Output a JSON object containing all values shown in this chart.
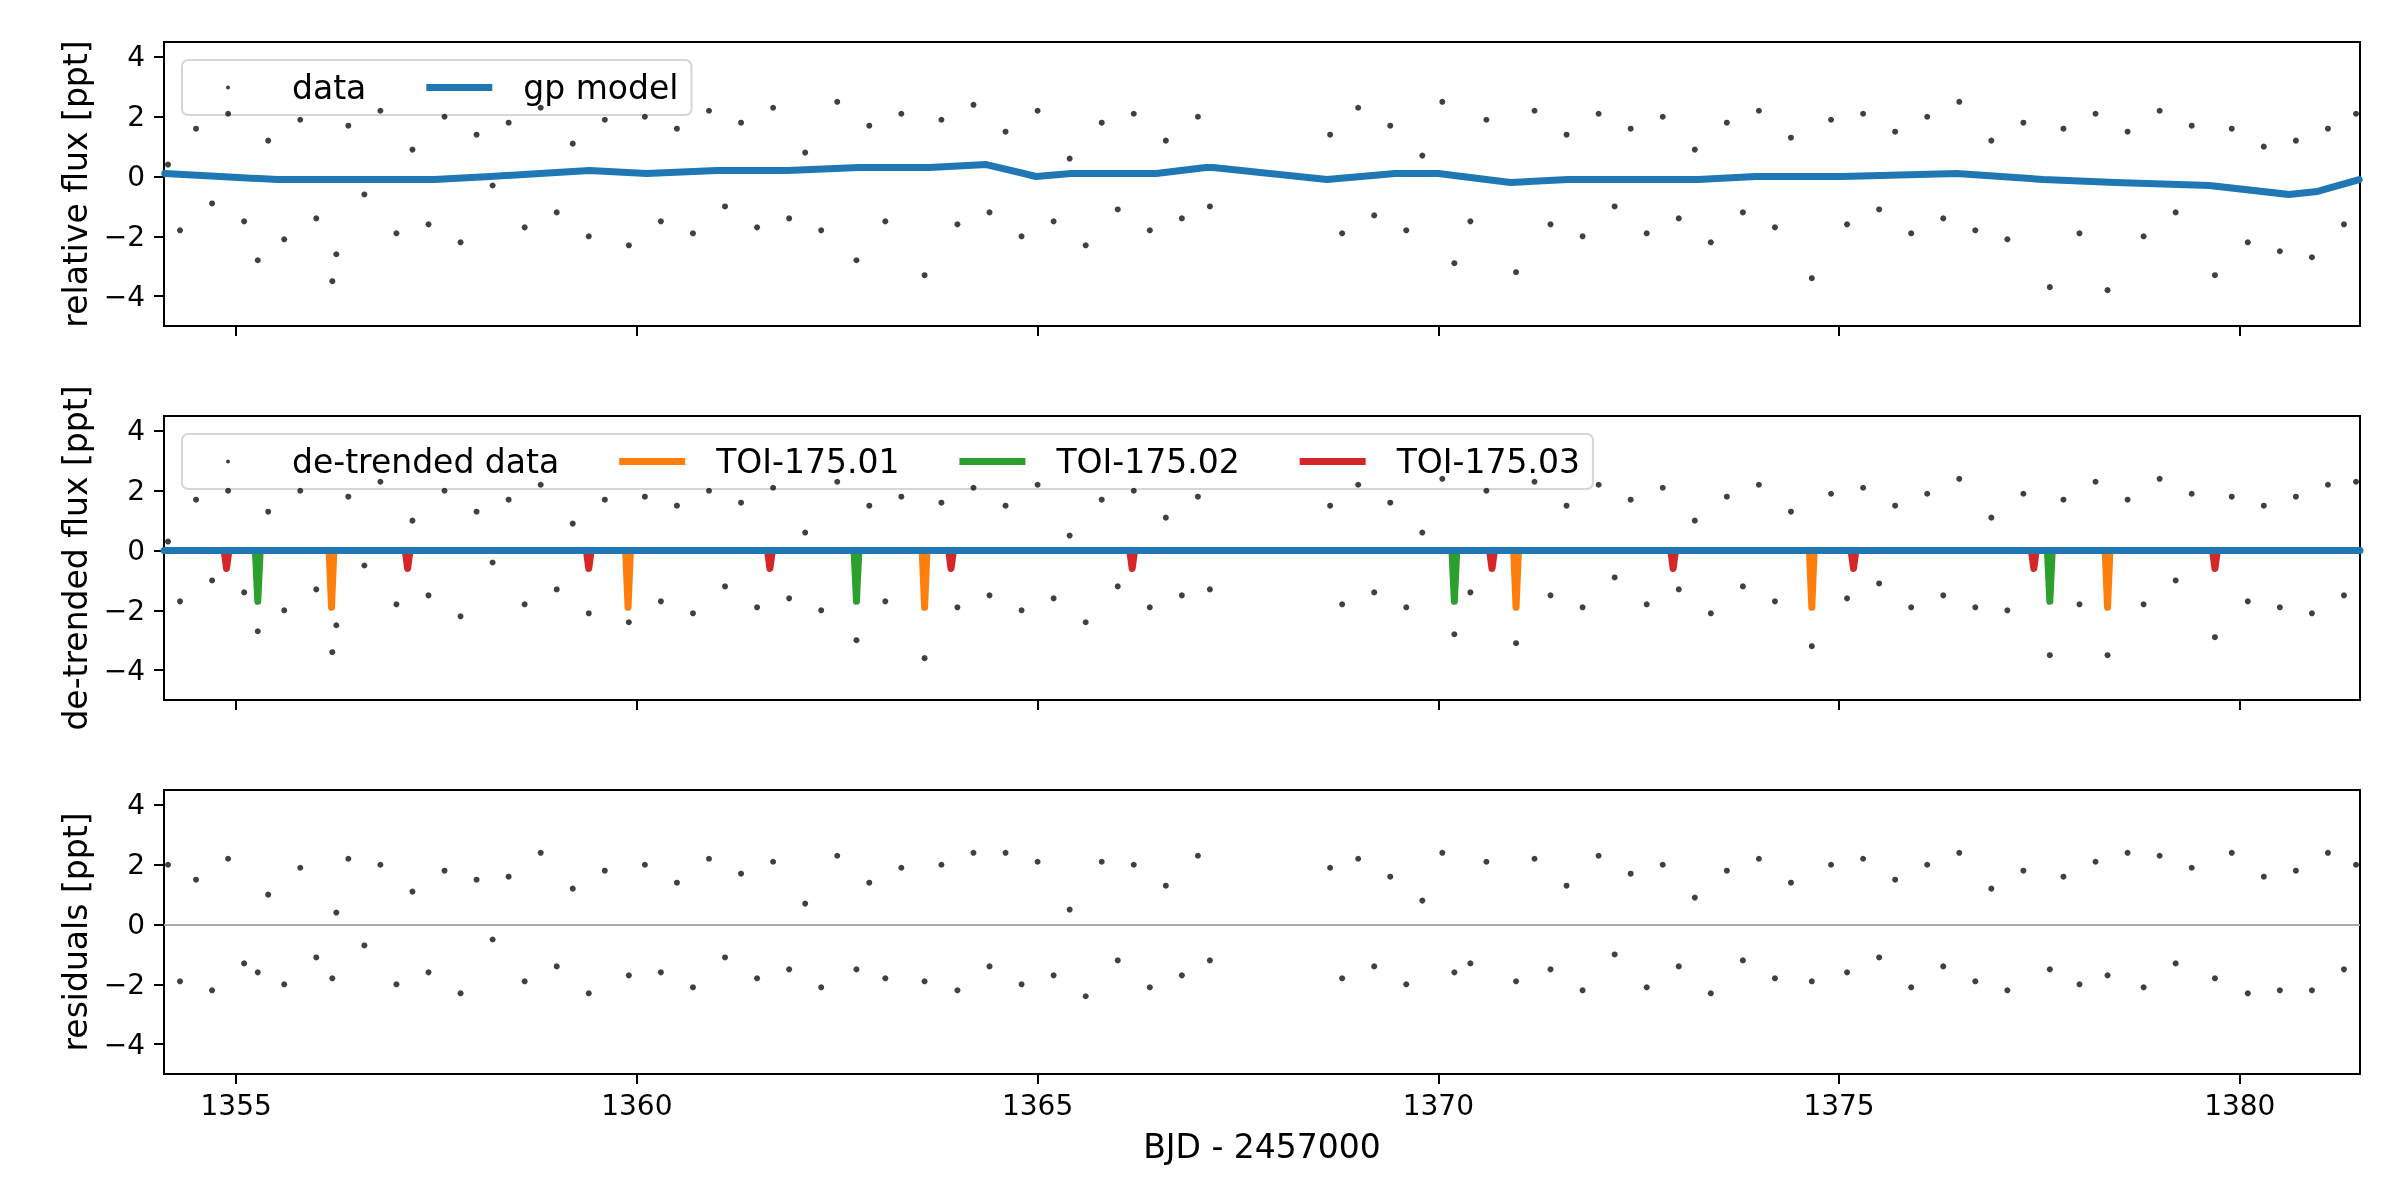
{
  "chart_data": [
    {
      "type": "scatter",
      "ylabel": "relative flux [ppt]",
      "xlim": [
        1354.1,
        1381.5
      ],
      "xticks": [
        1355,
        1360,
        1365,
        1370,
        1375,
        1380
      ],
      "ylim": [
        -5,
        4.5
      ],
      "yticks": [
        -4,
        -2,
        0,
        2,
        4
      ],
      "tick_labels": "y",
      "legend": "top left",
      "x": [
        1354.15,
        1354.3,
        1354.5,
        1354.7,
        1354.9,
        1355.1,
        1355.27,
        1355.4,
        1355.6,
        1355.8,
        1356.0,
        1356.2,
        1356.25,
        1356.4,
        1356.6,
        1356.8,
        1357.0,
        1357.2,
        1357.4,
        1357.6,
        1357.8,
        1358.0,
        1358.2,
        1358.4,
        1358.6,
        1358.8,
        1359.0,
        1359.2,
        1359.4,
        1359.6,
        1359.9,
        1360.1,
        1360.3,
        1360.5,
        1360.7,
        1360.9,
        1361.1,
        1361.3,
        1361.5,
        1361.7,
        1361.9,
        1362.1,
        1362.3,
        1362.5,
        1362.74,
        1362.9,
        1363.1,
        1363.3,
        1363.59,
        1363.8,
        1364.0,
        1364.2,
        1364.4,
        1364.6,
        1364.8,
        1365.0,
        1365.2,
        1365.4,
        1365.6,
        1365.8,
        1366.0,
        1366.2,
        1366.4,
        1366.6,
        1366.8,
        1367.0,
        1367.15,
        1368.65,
        1368.8,
        1369.0,
        1369.2,
        1369.4,
        1369.6,
        1369.8,
        1370.05,
        1370.2,
        1370.4,
        1370.6,
        1370.97,
        1371.2,
        1371.4,
        1371.6,
        1371.8,
        1372.0,
        1372.2,
        1372.4,
        1372.6,
        1372.8,
        1373.0,
        1373.2,
        1373.4,
        1373.6,
        1373.8,
        1374.0,
        1374.2,
        1374.4,
        1374.66,
        1374.9,
        1375.1,
        1375.3,
        1375.5,
        1375.7,
        1375.9,
        1376.1,
        1376.3,
        1376.5,
        1376.7,
        1376.9,
        1377.1,
        1377.3,
        1377.63,
        1377.8,
        1378.0,
        1378.2,
        1378.35,
        1378.6,
        1378.8,
        1379.0,
        1379.2,
        1379.4,
        1379.69,
        1379.9,
        1380.1,
        1380.3,
        1380.5,
        1380.7,
        1380.9,
        1381.1,
        1381.3,
        1381.45
      ],
      "series": [
        {
          "name": "data",
          "color": "#000000",
          "marker": "circle",
          "values": [
            0.4,
            -1.8,
            1.6,
            -0.9,
            2.1,
            -1.5,
            -2.8,
            1.2,
            -2.1,
            1.9,
            -1.4,
            -3.5,
            -2.6,
            1.7,
            -0.6,
            2.2,
            -1.9,
            0.9,
            -1.6,
            2.0,
            -2.2,
            1.4,
            -0.3,
            1.8,
            -1.7,
            2.3,
            -1.2,
            1.1,
            -2.0,
            1.9,
            -2.3,
            2.0,
            -1.5,
            1.6,
            -1.9,
            2.2,
            -1.0,
            1.8,
            -1.7,
            2.3,
            -1.4,
            0.8,
            -1.8,
            2.5,
            -2.8,
            1.7,
            -1.5,
            2.1,
            -3.3,
            1.9,
            -1.6,
            2.4,
            -1.2,
            1.5,
            -2.0,
            2.2,
            -1.5,
            0.6,
            -2.3,
            1.8,
            -1.1,
            2.1,
            -1.8,
            1.2,
            -1.4,
            2.0,
            -1.0,
            1.4,
            -1.9,
            2.3,
            -1.3,
            1.7,
            -1.8,
            0.7,
            2.5,
            -2.9,
            -1.5,
            1.9,
            -3.2,
            2.2,
            -1.6,
            1.4,
            -2.0,
            2.1,
            -1.0,
            1.6,
            -1.9,
            2.0,
            -1.4,
            0.9,
            -2.2,
            1.8,
            -1.2,
            2.2,
            -1.7,
            1.3,
            -3.4,
            1.9,
            -1.6,
            2.1,
            -1.1,
            1.5,
            -1.9,
            2.0,
            -1.4,
            2.5,
            -1.8,
            1.2,
            -2.1,
            1.8,
            -3.7,
            1.6,
            -1.9,
            2.1,
            -3.8,
            1.5,
            -2.0,
            2.2,
            -1.2,
            1.7,
            -3.3,
            1.6,
            -2.2,
            1.0,
            -2.5,
            1.2,
            -2.7,
            1.6,
            -1.6,
            2.1
          ]
        },
        {
          "name": "gp model",
          "type": "line",
          "color": "#1f77b4",
          "marker": "none",
          "x": [
            1354.11,
            1354.8,
            1355.52,
            1356.23,
            1357.47,
            1358.17,
            1358.79,
            1359.41,
            1360.12,
            1361.0,
            1361.88,
            1362.77,
            1363.65,
            1364.36,
            1364.98,
            1365.42,
            1366.48,
            1367.1,
            1367.19,
            1368.61,
            1369.46,
            1370.0,
            1370.9,
            1371.62,
            1372.88,
            1373.24,
            1373.96,
            1375.04,
            1376.47,
            1377.55,
            1378.45,
            1379.62,
            1380.61,
            1380.97,
            1381.49
          ],
          "values": [
            0.1,
            0.0,
            -0.1,
            -0.1,
            -0.1,
            0.0,
            0.1,
            0.2,
            0.1,
            0.2,
            0.2,
            0.3,
            0.3,
            0.4,
            0.0,
            0.1,
            0.1,
            0.3,
            0.3,
            -0.1,
            0.1,
            0.1,
            -0.2,
            -0.1,
            -0.1,
            -0.1,
            0.0,
            0.0,
            0.1,
            -0.1,
            -0.2,
            -0.3,
            -0.6,
            -0.5,
            -0.1
          ]
        }
      ]
    },
    {
      "type": "scatter",
      "ylabel": "de-trended flux [ppt]",
      "xlim": [
        1354.1,
        1381.5
      ],
      "xticks": [
        1355,
        1360,
        1365,
        1370,
        1375,
        1380
      ],
      "ylim": [
        -5,
        4.5
      ],
      "yticks": [
        -4,
        -2,
        0,
        2,
        4
      ],
      "tick_labels": "y",
      "legend": "top left",
      "x": [
        1354.15,
        1354.3,
        1354.5,
        1354.7,
        1354.9,
        1355.1,
        1355.27,
        1355.4,
        1355.6,
        1355.8,
        1356.0,
        1356.2,
        1356.25,
        1356.4,
        1356.6,
        1356.8,
        1357.0,
        1357.2,
        1357.4,
        1357.6,
        1357.8,
        1358.0,
        1358.2,
        1358.4,
        1358.6,
        1358.8,
        1359.0,
        1359.2,
        1359.4,
        1359.6,
        1359.9,
        1360.1,
        1360.3,
        1360.5,
        1360.7,
        1360.9,
        1361.1,
        1361.3,
        1361.5,
        1361.7,
        1361.9,
        1362.1,
        1362.3,
        1362.5,
        1362.74,
        1362.9,
        1363.1,
        1363.3,
        1363.59,
        1363.8,
        1364.0,
        1364.2,
        1364.4,
        1364.6,
        1364.8,
        1365.0,
        1365.2,
        1365.4,
        1365.6,
        1365.8,
        1366.0,
        1366.2,
        1366.4,
        1366.6,
        1366.8,
        1367.0,
        1367.15,
        1368.65,
        1368.8,
        1369.0,
        1369.2,
        1369.4,
        1369.6,
        1369.8,
        1370.05,
        1370.2,
        1370.4,
        1370.6,
        1370.97,
        1371.2,
        1371.4,
        1371.6,
        1371.8,
        1372.0,
        1372.2,
        1372.4,
        1372.6,
        1372.8,
        1373.0,
        1373.2,
        1373.4,
        1373.6,
        1373.8,
        1374.0,
        1374.2,
        1374.4,
        1374.66,
        1374.9,
        1375.1,
        1375.3,
        1375.5,
        1375.7,
        1375.9,
        1376.1,
        1376.3,
        1376.5,
        1376.7,
        1376.9,
        1377.1,
        1377.3,
        1377.63,
        1377.8,
        1378.0,
        1378.2,
        1378.35,
        1378.6,
        1378.8,
        1379.0,
        1379.2,
        1379.4,
        1379.69,
        1379.9,
        1380.1,
        1380.3,
        1380.5,
        1380.7,
        1380.9,
        1381.1,
        1381.3,
        1381.45
      ],
      "series": [
        {
          "name": "de-trended data",
          "color": "#000000",
          "marker": "circle",
          "values": [
            0.3,
            -1.7,
            1.7,
            -1.0,
            2.0,
            -1.4,
            -2.7,
            1.3,
            -2.0,
            2.0,
            -1.3,
            -3.4,
            -2.5,
            1.8,
            -0.5,
            2.3,
            -1.8,
            1.0,
            -1.5,
            2.0,
            -2.2,
            1.3,
            -0.4,
            1.7,
            -1.8,
            2.2,
            -1.3,
            0.9,
            -2.1,
            1.7,
            -2.4,
            1.8,
            -1.7,
            1.5,
            -2.1,
            2.0,
            -1.2,
            1.6,
            -1.9,
            2.1,
            -1.6,
            0.6,
            -2.0,
            2.3,
            -3.0,
            1.5,
            -1.7,
            1.8,
            -3.6,
            1.6,
            -1.9,
            2.1,
            -1.5,
            1.5,
            -2.0,
            2.2,
            -1.6,
            0.5,
            -2.4,
            1.7,
            -1.2,
            2.0,
            -1.9,
            1.1,
            -1.5,
            1.8,
            -1.3,
            1.5,
            -1.8,
            2.2,
            -1.4,
            1.6,
            -1.9,
            0.6,
            2.4,
            -2.8,
            -1.4,
            2.0,
            -3.1,
            2.3,
            -1.5,
            1.5,
            -1.9,
            2.2,
            -0.9,
            1.7,
            -1.8,
            2.1,
            -1.3,
            1.0,
            -2.1,
            1.8,
            -1.2,
            2.2,
            -1.7,
            1.3,
            -3.2,
            1.9,
            -1.6,
            2.1,
            -1.1,
            1.5,
            -1.9,
            1.9,
            -1.5,
            2.4,
            -1.9,
            1.1,
            -2.0,
            1.9,
            -3.5,
            1.7,
            -1.8,
            2.3,
            -3.5,
            1.7,
            -1.8,
            2.4,
            -1.0,
            1.9,
            -2.9,
            1.8,
            -1.7,
            1.5,
            -1.9,
            1.8,
            -2.1,
            2.2,
            -1.5,
            2.3
          ]
        },
        {
          "name": "TOI-175.01",
          "type": "line",
          "color": "#ff7f0e",
          "marker": "none",
          "x": [
            1356.16,
            1356.19,
            1356.22,
            1356.3,
            1359.86,
            1359.89,
            1359.92,
            1360.0,
            1363.56,
            1363.59,
            1363.62,
            1363.7,
            1370.94,
            1370.97,
            1371.0,
            1371.1,
            1374.63,
            1374.66,
            1374.69,
            1374.8,
            1378.32,
            1378.35,
            1378.38
          ],
          "values": [
            0,
            -1.9,
            0,
            null,
            0,
            -1.9,
            0,
            null,
            0,
            -1.9,
            0,
            null,
            0,
            -1.9,
            0,
            null,
            0,
            -1.9,
            0,
            null,
            0,
            -1.9,
            0
          ]
        },
        {
          "name": "TOI-175.02",
          "type": "line",
          "color": "#2ca02c",
          "marker": "none",
          "x": [
            1355.24,
            1355.27,
            1355.3,
            1355.4,
            1362.71,
            1362.74,
            1362.77,
            1362.9,
            1370.17,
            1370.2,
            1370.23,
            1370.3,
            1377.6,
            1377.63,
            1377.66
          ],
          "values": [
            0,
            -1.7,
            0,
            null,
            0,
            -1.7,
            0,
            null,
            0,
            -1.7,
            0,
            null,
            0,
            -1.7,
            0
          ]
        },
        {
          "name": "TOI-175.03",
          "type": "line",
          "color": "#d62728",
          "marker": "none",
          "x": [
            1354.85,
            1354.88,
            1354.91,
            1355.0,
            1357.11,
            1357.14,
            1357.17,
            1357.3,
            1359.37,
            1359.4,
            1359.43,
            1359.5,
            1361.63,
            1361.66,
            1361.69,
            1361.8,
            1363.89,
            1363.92,
            1363.95,
            1364.0,
            1366.15,
            1366.18,
            1366.21,
            1366.3,
            1370.64,
            1370.67,
            1370.7,
            1370.8,
            1372.9,
            1372.93,
            1372.96,
            1373.0,
            1375.15,
            1375.18,
            1375.21,
            1375.3,
            1377.4,
            1377.43,
            1377.46,
            1377.5,
            1379.66,
            1379.69,
            1379.72
          ],
          "values": [
            0,
            -0.6,
            0,
            null,
            0,
            -0.6,
            0,
            null,
            0,
            -0.6,
            0,
            null,
            0,
            -0.6,
            0,
            null,
            0,
            -0.6,
            0,
            null,
            0,
            -0.6,
            0,
            null,
            0,
            -0.6,
            0,
            null,
            0,
            -0.6,
            0,
            null,
            0,
            -0.6,
            0,
            null,
            0,
            -0.6,
            0,
            null,
            0,
            -0.6,
            0
          ]
        },
        {
          "type": "line",
          "color": "#1f77b4",
          "marker": "none",
          "x": [
            1354.1,
            1381.5
          ],
          "values": [
            0,
            0
          ]
        }
      ]
    },
    {
      "type": "scatter",
      "ylabel": "residuals [ppt]",
      "xlabel": "BJD - 2457000",
      "xlim": [
        1354.1,
        1381.5
      ],
      "xticks": [
        1355,
        1360,
        1365,
        1370,
        1375,
        1380
      ],
      "ylim": [
        -5,
        4.5
      ],
      "yticks": [
        -4,
        -2,
        0,
        2,
        4
      ],
      "ref_lines": [
        {
          "axis": "y",
          "value": 0,
          "color": "#aaaaaa"
        }
      ],
      "x": [
        1354.15,
        1354.3,
        1354.5,
        1354.7,
        1354.9,
        1355.1,
        1355.27,
        1355.4,
        1355.6,
        1355.8,
        1356.0,
        1356.2,
        1356.25,
        1356.4,
        1356.6,
        1356.8,
        1357.0,
        1357.2,
        1357.4,
        1357.6,
        1357.8,
        1358.0,
        1358.2,
        1358.4,
        1358.6,
        1358.8,
        1359.0,
        1359.2,
        1359.4,
        1359.6,
        1359.9,
        1360.1,
        1360.3,
        1360.5,
        1360.7,
        1360.9,
        1361.1,
        1361.3,
        1361.5,
        1361.7,
        1361.9,
        1362.1,
        1362.3,
        1362.5,
        1362.74,
        1362.9,
        1363.1,
        1363.3,
        1363.59,
        1363.8,
        1364.0,
        1364.2,
        1364.4,
        1364.6,
        1364.8,
        1365.0,
        1365.2,
        1365.4,
        1365.6,
        1365.8,
        1366.0,
        1366.2,
        1366.4,
        1366.6,
        1366.8,
        1367.0,
        1367.15,
        1368.65,
        1368.8,
        1369.0,
        1369.2,
        1369.4,
        1369.6,
        1369.8,
        1370.05,
        1370.2,
        1370.4,
        1370.6,
        1370.97,
        1371.2,
        1371.4,
        1371.6,
        1371.8,
        1372.0,
        1372.2,
        1372.4,
        1372.6,
        1372.8,
        1373.0,
        1373.2,
        1373.4,
        1373.6,
        1373.8,
        1374.0,
        1374.2,
        1374.4,
        1374.66,
        1374.9,
        1375.1,
        1375.3,
        1375.5,
        1375.7,
        1375.9,
        1376.1,
        1376.3,
        1376.5,
        1376.7,
        1376.9,
        1377.1,
        1377.3,
        1377.63,
        1377.8,
        1378.0,
        1378.2,
        1378.35,
        1378.6,
        1378.8,
        1379.0,
        1379.2,
        1379.4,
        1379.69,
        1379.9,
        1380.1,
        1380.3,
        1380.5,
        1380.7,
        1380.9,
        1381.1,
        1381.3,
        1381.45
      ],
      "series": [
        {
          "color": "#000000",
          "marker": "circle",
          "values": [
            2.0,
            -1.9,
            1.5,
            -2.2,
            2.2,
            -1.3,
            -1.6,
            1.0,
            -2.0,
            1.9,
            -1.1,
            -1.8,
            0.4,
            2.2,
            -0.7,
            2.0,
            -2.0,
            1.1,
            -1.6,
            1.8,
            -2.3,
            1.5,
            -0.5,
            1.6,
            -1.9,
            2.4,
            -1.4,
            1.2,
            -2.3,
            1.8,
            -1.7,
            2.0,
            -1.6,
            1.4,
            -2.1,
            2.2,
            -1.1,
            1.7,
            -1.8,
            2.1,
            -1.5,
            0.7,
            -2.1,
            2.3,
            -1.5,
            1.4,
            -1.8,
            1.9,
            -1.9,
            2.0,
            -2.2,
            2.4,
            -1.4,
            2.4,
            -2.0,
            2.1,
            -1.7,
            0.5,
            -2.4,
            2.1,
            -1.2,
            2.0,
            -2.1,
            1.3,
            -1.7,
            2.3,
            -1.2,
            1.9,
            -1.8,
            2.2,
            -1.4,
            1.6,
            -2.0,
            0.8,
            2.4,
            -1.6,
            -1.3,
            2.1,
            -1.9,
            2.2,
            -1.5,
            1.3,
            -2.2,
            2.3,
            -1.0,
            1.7,
            -2.1,
            2.0,
            -1.4,
            0.9,
            -2.3,
            1.8,
            -1.2,
            2.2,
            -1.8,
            1.4,
            -1.9,
            2.0,
            -1.6,
            2.2,
            -1.1,
            1.5,
            -2.1,
            2.0,
            -1.4,
            2.4,
            -1.9,
            1.2,
            -2.2,
            1.8,
            -1.5,
            1.6,
            -2.0,
            2.1,
            -1.7,
            2.4,
            -2.1,
            2.3,
            -1.3,
            1.9,
            -1.8,
            2.4,
            -2.3,
            1.6,
            -2.2,
            1.8,
            -2.2,
            2.4,
            -1.5,
            2.0
          ]
        }
      ]
    }
  ]
}
